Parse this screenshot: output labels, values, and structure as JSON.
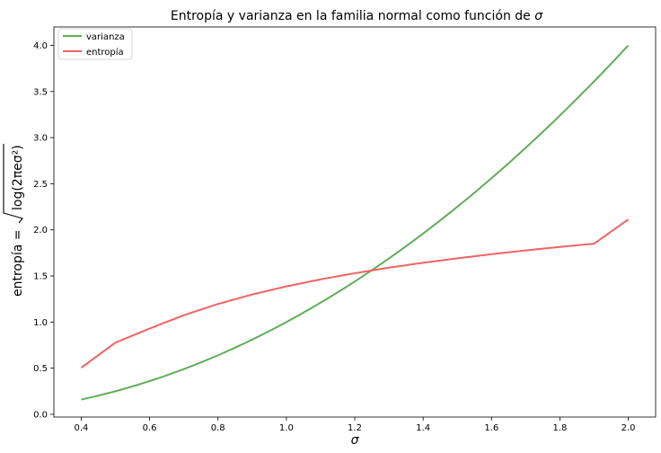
{
  "chart_data": {
    "type": "line",
    "title_prefix": "Entropía y varianza en la familia normal como función de ",
    "title_symbol": "σ",
    "xlabel": "σ",
    "ylabel_prefix": "entropía =",
    "ylabel_formula": "log(2πeσ²)",
    "xlim": [
      0.32,
      2.08
    ],
    "ylim": [
      -0.03,
      4.2
    ],
    "xticks": [
      0.4,
      0.6,
      0.8,
      1.0,
      1.2,
      1.4,
      1.6,
      1.8,
      2.0
    ],
    "xtick_labels": [
      "0.4",
      "0.6",
      "0.8",
      "1.0",
      "1.2",
      "1.4",
      "1.6",
      "1.8",
      "2.0"
    ],
    "yticks": [
      0.0,
      0.5,
      1.0,
      1.5,
      2.0,
      2.5,
      3.0,
      3.5,
      4.0
    ],
    "ytick_labels": [
      "0.0",
      "0.5",
      "1.0",
      "1.5",
      "2.0",
      "2.5",
      "3.0",
      "3.5",
      "4.0"
    ],
    "legend_position": "top-left",
    "x": [
      0.4,
      0.5,
      0.6,
      0.7,
      0.8,
      0.9,
      1.0,
      1.1,
      1.2,
      1.3,
      1.4,
      1.5,
      1.6,
      1.7,
      1.8,
      1.9,
      2.0
    ],
    "series": [
      {
        "name": "varianza",
        "color": "#5fae57",
        "values": [
          0.16,
          0.25,
          0.36,
          0.49,
          0.64,
          0.81,
          1.0,
          1.21,
          1.44,
          1.69,
          1.96,
          2.25,
          2.56,
          2.89,
          3.24,
          3.61,
          4.0
        ]
      },
      {
        "name": "entropía",
        "color": "#f16363",
        "values": [
          0.505,
          0.777,
          0.93,
          1.074,
          1.196,
          1.299,
          1.387,
          1.463,
          1.53,
          1.59,
          1.643,
          1.691,
          1.736,
          1.777,
          1.815,
          1.85,
          2.113
        ]
      }
    ]
  }
}
